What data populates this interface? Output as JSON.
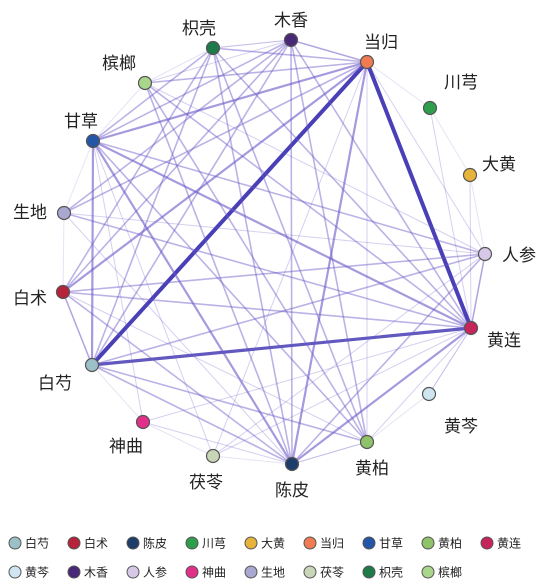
{
  "nodes": [
    {
      "id": "baishao",
      "label": "白芍",
      "color": "#9cc0c8"
    },
    {
      "id": "baizhu",
      "label": "白术",
      "color": "#b5223a"
    },
    {
      "id": "chenpi",
      "label": "陈皮",
      "color": "#1f3d6b"
    },
    {
      "id": "chuanxiong",
      "label": "川芎",
      "color": "#2e9e4a"
    },
    {
      "id": "dahuang",
      "label": "大黄",
      "color": "#e8b33a"
    },
    {
      "id": "danggui",
      "label": "当归",
      "color": "#f07a52"
    },
    {
      "id": "gancao",
      "label": "甘草",
      "color": "#2456a8"
    },
    {
      "id": "huangbai",
      "label": "黄柏",
      "color": "#8ec36a"
    },
    {
      "id": "huanglian",
      "label": "黄连",
      "color": "#c8245c"
    },
    {
      "id": "huangqin",
      "label": "黄芩",
      "color": "#cfe6f0"
    },
    {
      "id": "muxiang",
      "label": "木香",
      "color": "#4a2878"
    },
    {
      "id": "renshen",
      "label": "人参",
      "color": "#d8c8e8"
    },
    {
      "id": "shenqu",
      "label": "神曲",
      "color": "#e2308a"
    },
    {
      "id": "shengdi",
      "label": "生地",
      "color": "#a8a8d0"
    },
    {
      "id": "fuling",
      "label": "茯苓",
      "color": "#c8d6b8"
    },
    {
      "id": "zhiqiao",
      "label": "枳壳",
      "color": "#1f7a4a"
    },
    {
      "id": "binglang",
      "label": "槟榔",
      "color": "#a8d68a"
    }
  ],
  "edges": [
    {
      "source": "danggui",
      "target": "baishao",
      "weight": 5
    },
    {
      "source": "danggui",
      "target": "huanglian",
      "weight": 5
    },
    {
      "source": "baishao",
      "target": "huanglian",
      "weight": 4
    },
    {
      "source": "danggui",
      "target": "gancao",
      "weight": 3
    },
    {
      "source": "danggui",
      "target": "chenpi",
      "weight": 3
    },
    {
      "source": "danggui",
      "target": "baizhu",
      "weight": 3
    },
    {
      "source": "danggui",
      "target": "shengdi",
      "weight": 2
    },
    {
      "source": "danggui",
      "target": "zhiqiao",
      "weight": 2
    },
    {
      "source": "danggui",
      "target": "muxiang",
      "weight": 2
    },
    {
      "source": "danggui",
      "target": "binglang",
      "weight": 2
    },
    {
      "source": "danggui",
      "target": "renshen",
      "weight": 1
    },
    {
      "source": "danggui",
      "target": "huangbai",
      "weight": 1
    },
    {
      "source": "danggui",
      "target": "fuling",
      "weight": 1
    },
    {
      "source": "gancao",
      "target": "huanglian",
      "weight": 3
    },
    {
      "source": "gancao",
      "target": "renshen",
      "weight": 2
    },
    {
      "source": "gancao",
      "target": "baishao",
      "weight": 3
    },
    {
      "source": "gancao",
      "target": "chenpi",
      "weight": 3
    },
    {
      "source": "gancao",
      "target": "muxiang",
      "weight": 2
    },
    {
      "source": "gancao",
      "target": "zhiqiao",
      "weight": 2
    },
    {
      "source": "gancao",
      "target": "huangbai",
      "weight": 2
    },
    {
      "source": "gancao",
      "target": "shenqu",
      "weight": 1
    },
    {
      "source": "gancao",
      "target": "fuling",
      "weight": 1
    },
    {
      "source": "baizhu",
      "target": "huanglian",
      "weight": 2
    },
    {
      "source": "baizhu",
      "target": "renshen",
      "weight": 2
    },
    {
      "source": "baizhu",
      "target": "chenpi",
      "weight": 2
    },
    {
      "source": "baizhu",
      "target": "muxiang",
      "weight": 2
    },
    {
      "source": "baizhu",
      "target": "zhiqiao",
      "weight": 2
    },
    {
      "source": "baizhu",
      "target": "huangbai",
      "weight": 1
    },
    {
      "source": "baizhu",
      "target": "baishao",
      "weight": 2
    },
    {
      "source": "shengdi",
      "target": "huanglian",
      "weight": 2
    },
    {
      "source": "shengdi",
      "target": "muxiang",
      "weight": 2
    },
    {
      "source": "shengdi",
      "target": "renshen",
      "weight": 1
    },
    {
      "source": "shengdi",
      "target": "chenpi",
      "weight": 1
    },
    {
      "source": "baishao",
      "target": "renshen",
      "weight": 2
    },
    {
      "source": "baishao",
      "target": "chenpi",
      "weight": 2
    },
    {
      "source": "baishao",
      "target": "zhiqiao",
      "weight": 2
    },
    {
      "source": "baishao",
      "target": "muxiang",
      "weight": 2
    },
    {
      "source": "baishao",
      "target": "huangbai",
      "weight": 2
    },
    {
      "source": "chenpi",
      "target": "huanglian",
      "weight": 3
    },
    {
      "source": "chenpi",
      "target": "renshen",
      "weight": 2
    },
    {
      "source": "chenpi",
      "target": "zhiqiao",
      "weight": 2
    },
    {
      "source": "chenpi",
      "target": "muxiang",
      "weight": 2
    },
    {
      "source": "chenpi",
      "target": "binglang",
      "weight": 2
    },
    {
      "source": "chenpi",
      "target": "huangbai",
      "weight": 1
    },
    {
      "source": "muxiang",
      "target": "huanglian",
      "weight": 2
    },
    {
      "source": "muxiang",
      "target": "huangbai",
      "weight": 2
    },
    {
      "source": "muxiang",
      "target": "zhiqiao",
      "weight": 1
    },
    {
      "source": "muxiang",
      "target": "binglang",
      "weight": 1
    },
    {
      "source": "zhiqiao",
      "target": "huanglian",
      "weight": 2
    },
    {
      "source": "zhiqiao",
      "target": "huangbai",
      "weight": 2
    },
    {
      "source": "binglang",
      "target": "huanglian",
      "weight": 2
    },
    {
      "source": "binglang",
      "target": "huangbai",
      "weight": 2
    },
    {
      "source": "binglang",
      "target": "renshen",
      "weight": 1
    },
    {
      "source": "renshen",
      "target": "huanglian",
      "weight": 2
    },
    {
      "source": "huangbai",
      "target": "huanglian",
      "weight": 1
    },
    {
      "source": "fuling",
      "target": "huanglian",
      "weight": 1
    },
    {
      "source": "fuling",
      "target": "renshen",
      "weight": 1
    },
    {
      "source": "shenqu",
      "target": "chenpi",
      "weight": 1
    },
    {
      "source": "shenqu",
      "target": "huanglian",
      "weight": 1
    },
    {
      "source": "chuanxiong",
      "target": "huanglian",
      "weight": 1
    },
    {
      "source": "dahuang",
      "target": "huanglian",
      "weight": 1
    },
    {
      "source": "huangqin",
      "target": "huanglian",
      "weight": 1
    }
  ],
  "legend_line1": [
    "baishao",
    "baizhu",
    "chenpi",
    "chuanxiong",
    "dahuang",
    "danggui",
    "gancao",
    "huangbai",
    "huanglian"
  ],
  "legend_line2": [
    "huangqin",
    "muxiang",
    "renshen",
    "shenqu",
    "shengdi",
    "fuling",
    "zhiqiao",
    "binglang"
  ]
}
